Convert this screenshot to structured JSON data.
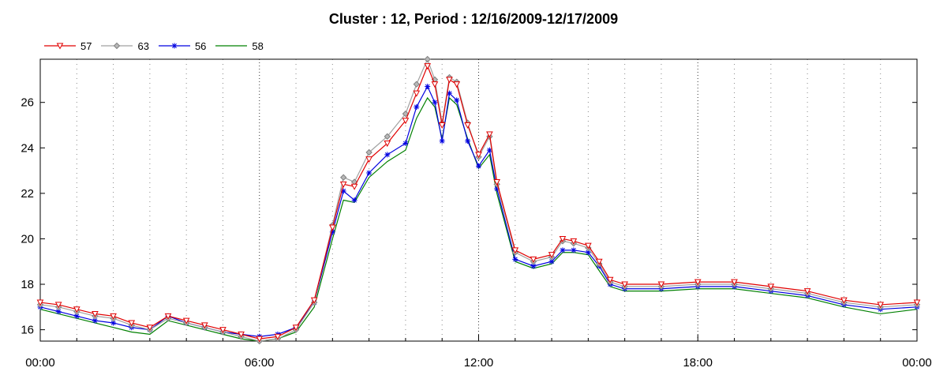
{
  "chart_data": {
    "type": "line",
    "title": "Cluster : 12, Period : 12/16/2009-12/17/2009",
    "xlabel": "",
    "ylabel": "",
    "x_unit": "hours",
    "xlim": [
      0,
      24
    ],
    "ylim": [
      15.5,
      27.9
    ],
    "x_ticks": [
      {
        "value": 0,
        "label": "00:00"
      },
      {
        "value": 6,
        "label": "06:00"
      },
      {
        "value": 12,
        "label": "12:00"
      },
      {
        "value": 18,
        "label": "18:00"
      },
      {
        "value": 24,
        "label": "00:00"
      }
    ],
    "y_ticks": [
      16,
      18,
      20,
      22,
      24,
      26
    ],
    "grid": "dotted vertical lines every hour",
    "legend_position": "top-left",
    "series": [
      {
        "name": "57",
        "color": "#e00000",
        "marker": "triangle-down",
        "x": [
          0,
          0.5,
          1,
          1.5,
          2,
          2.5,
          3,
          3.5,
          4,
          4.5,
          5,
          5.5,
          6,
          6.5,
          7,
          7.5,
          8,
          8.3,
          8.6,
          9,
          9.5,
          10,
          10.3,
          10.6,
          10.8,
          11,
          11.2,
          11.4,
          11.7,
          12,
          12.3,
          12.5,
          13,
          13.5,
          14,
          14.3,
          14.6,
          15,
          15.3,
          15.6,
          16,
          17,
          18,
          19,
          20,
          21,
          22,
          23,
          24
        ],
        "values": [
          17.2,
          17.1,
          16.9,
          16.7,
          16.6,
          16.3,
          16.1,
          16.6,
          16.4,
          16.2,
          16.0,
          15.8,
          15.6,
          15.7,
          16.1,
          17.3,
          20.5,
          22.4,
          22.3,
          23.5,
          24.2,
          25.2,
          26.4,
          27.6,
          26.8,
          25.0,
          27.0,
          26.8,
          25.0,
          23.7,
          24.6,
          22.5,
          19.5,
          19.1,
          19.3,
          20.0,
          19.9,
          19.7,
          19.0,
          18.2,
          18.0,
          18.0,
          18.1,
          18.1,
          17.9,
          17.7,
          17.3,
          17.1,
          17.2
        ]
      },
      {
        "name": "63",
        "color": "#a0a0a0",
        "marker": "diamond",
        "x": [
          0,
          0.5,
          1,
          1.5,
          2,
          2.5,
          3,
          3.5,
          4,
          4.5,
          5,
          5.5,
          6,
          6.5,
          7,
          7.5,
          8,
          8.3,
          8.6,
          9,
          9.5,
          10,
          10.3,
          10.6,
          10.8,
          11,
          11.2,
          11.4,
          11.7,
          12,
          12.3,
          12.5,
          13,
          13.5,
          14,
          14.3,
          14.6,
          15,
          15.3,
          15.6,
          16,
          17,
          18,
          19,
          20,
          21,
          22,
          23,
          24
        ],
        "values": [
          17.1,
          17.0,
          16.8,
          16.6,
          16.5,
          16.2,
          16.0,
          16.5,
          16.3,
          16.1,
          15.9,
          15.7,
          15.5,
          15.6,
          16.0,
          17.2,
          20.6,
          22.7,
          22.5,
          23.8,
          24.5,
          25.5,
          26.8,
          27.9,
          27.0,
          25.1,
          27.1,
          26.9,
          25.1,
          23.6,
          24.5,
          22.4,
          19.4,
          19.0,
          19.2,
          19.9,
          19.8,
          19.6,
          18.9,
          18.1,
          17.9,
          17.9,
          18.0,
          18.0,
          17.8,
          17.6,
          17.2,
          17.0,
          17.1
        ]
      },
      {
        "name": "56",
        "color": "#0000e0",
        "marker": "star",
        "x": [
          0,
          0.5,
          1,
          1.5,
          2,
          2.5,
          3,
          3.5,
          4,
          4.5,
          5,
          5.5,
          6,
          6.5,
          7,
          7.5,
          8,
          8.3,
          8.6,
          9,
          9.5,
          10,
          10.3,
          10.6,
          10.8,
          11,
          11.2,
          11.4,
          11.7,
          12,
          12.3,
          12.5,
          13,
          13.5,
          14,
          14.3,
          14.6,
          15,
          15.3,
          15.6,
          16,
          17,
          18,
          19,
          20,
          21,
          22,
          23,
          24
        ],
        "values": [
          17.0,
          16.8,
          16.6,
          16.4,
          16.3,
          16.1,
          16.0,
          16.6,
          16.3,
          16.1,
          15.9,
          15.8,
          15.7,
          15.8,
          16.1,
          17.2,
          20.3,
          22.1,
          21.7,
          22.9,
          23.7,
          24.2,
          25.8,
          26.7,
          26.0,
          24.3,
          26.4,
          26.1,
          24.3,
          23.2,
          23.9,
          22.2,
          19.1,
          18.8,
          19.0,
          19.5,
          19.5,
          19.4,
          18.8,
          18.0,
          17.8,
          17.8,
          17.9,
          17.9,
          17.7,
          17.5,
          17.1,
          16.9,
          17.0
        ]
      },
      {
        "name": "58",
        "color": "#008000",
        "marker": "none",
        "x": [
          0,
          0.5,
          1,
          1.5,
          2,
          2.5,
          3,
          3.5,
          4,
          4.5,
          5,
          5.5,
          6,
          6.5,
          7,
          7.5,
          8,
          8.3,
          8.6,
          9,
          9.5,
          10,
          10.3,
          10.6,
          10.8,
          11,
          11.2,
          11.4,
          11.7,
          12,
          12.3,
          12.5,
          13,
          13.5,
          14,
          14.3,
          14.6,
          15,
          15.3,
          15.6,
          16,
          17,
          18,
          19,
          20,
          21,
          22,
          23,
          24
        ],
        "values": [
          16.9,
          16.7,
          16.5,
          16.3,
          16.1,
          15.9,
          15.8,
          16.4,
          16.2,
          16.0,
          15.8,
          15.6,
          15.5,
          15.6,
          15.9,
          17.0,
          20.0,
          21.7,
          21.6,
          22.7,
          23.4,
          23.9,
          25.3,
          26.2,
          25.8,
          24.4,
          26.2,
          25.9,
          24.4,
          23.1,
          23.7,
          22.0,
          19.0,
          18.7,
          18.9,
          19.4,
          19.4,
          19.3,
          18.6,
          17.9,
          17.7,
          17.7,
          17.8,
          17.8,
          17.6,
          17.4,
          17.0,
          16.7,
          16.9
        ]
      }
    ]
  }
}
